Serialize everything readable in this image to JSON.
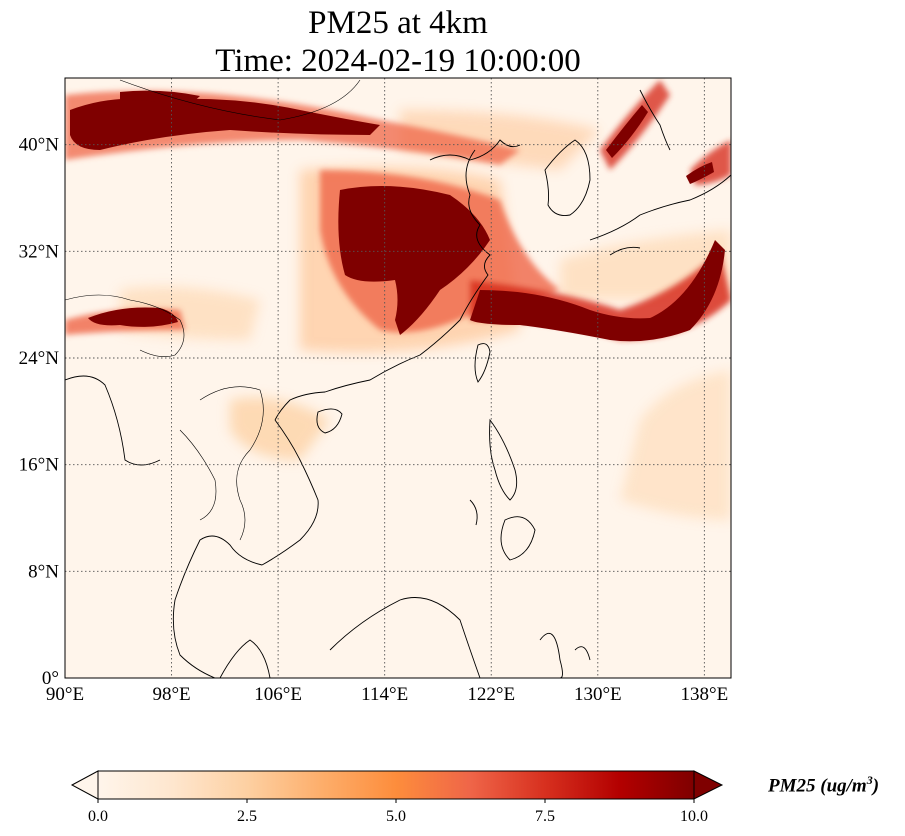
{
  "title": {
    "line1": "PM25 at 4km",
    "line2": "Time: 2024-02-19 10:00:00"
  },
  "map": {
    "projection": "PlateCarree",
    "lon_range": [
      90,
      140
    ],
    "lat_range": [
      0,
      45
    ],
    "gridlines": "dotted",
    "lat_ticks": [
      {
        "value": 0,
        "label": "0°"
      },
      {
        "value": 8,
        "label": "8°N"
      },
      {
        "value": 16,
        "label": "16°N"
      },
      {
        "value": 24,
        "label": "24°N"
      },
      {
        "value": 32,
        "label": "32°N"
      },
      {
        "value": 40,
        "label": "40°N"
      }
    ],
    "lon_ticks": [
      {
        "value": 90,
        "label": "90°E"
      },
      {
        "value": 98,
        "label": "98°E"
      },
      {
        "value": 106,
        "label": "106°E"
      },
      {
        "value": 114,
        "label": "114°E"
      },
      {
        "value": 122,
        "label": "122°E"
      },
      {
        "value": 130,
        "label": "130°E"
      },
      {
        "value": 138,
        "label": "138°E"
      }
    ],
    "coastline_color": "#000000",
    "background_color": "#fff5eb"
  },
  "colorbar": {
    "colormap": "OrRd",
    "min": 0.0,
    "max": 10.0,
    "extend": "both",
    "ticks": [
      "0.0",
      "2.5",
      "5.0",
      "7.5",
      "10.0"
    ],
    "label_text": "PM25 (ug/m",
    "label_sup": "3",
    "label_close": ")",
    "colors": [
      "#fff5eb",
      "#fee6ce",
      "#fdd0a2",
      "#fdae6b",
      "#fd8d3c",
      "#f16913",
      "#d94801",
      "#a63603",
      "#7f0000"
    ]
  }
}
